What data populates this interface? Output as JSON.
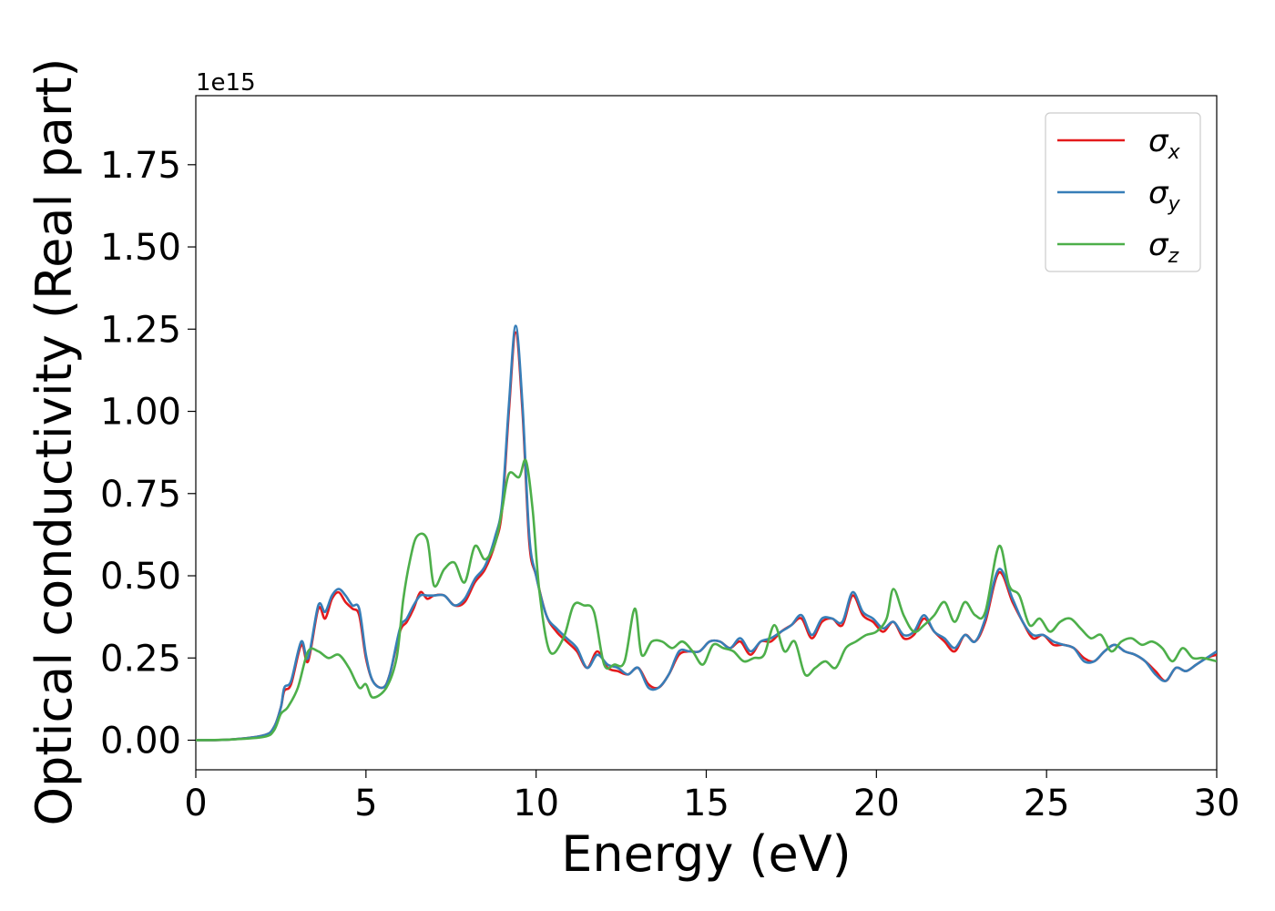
{
  "chart_data": {
    "type": "line",
    "title": "",
    "xlabel": "Energy (eV)",
    "ylabel": "Optical conductivity (Real part)",
    "y_offset_label": "1e15",
    "xlim": [
      0,
      30
    ],
    "ylim": [
      -0.09,
      1.96
    ],
    "x_ticks": [
      0,
      5,
      10,
      15,
      20,
      25,
      30
    ],
    "x_tick_labels": [
      "0",
      "5",
      "10",
      "15",
      "20",
      "25",
      "30"
    ],
    "y_ticks": [
      0.0,
      0.25,
      0.5,
      0.75,
      1.0,
      1.25,
      1.5,
      1.75
    ],
    "y_tick_labels": [
      "0.00",
      "0.25",
      "0.50",
      "0.75",
      "1.00",
      "1.25",
      "1.50",
      "1.75"
    ],
    "grid": false,
    "legend_position": "top-right",
    "series": [
      {
        "name": "σ",
        "subscript": "x",
        "color": "#e41a1c",
        "x": [
          0,
          1,
          2,
          2.3,
          2.5,
          2.6,
          2.8,
          3.1,
          3.3,
          3.6,
          3.8,
          4.0,
          4.2,
          4.4,
          4.6,
          4.8,
          5.0,
          5.2,
          5.5,
          5.7,
          6.0,
          6.2,
          6.4,
          6.6,
          6.8,
          7.0,
          7.3,
          7.6,
          7.9,
          8.2,
          8.5,
          8.8,
          9.0,
          9.2,
          9.4,
          9.6,
          9.8,
          10.0,
          10.3,
          10.6,
          10.9,
          11.2,
          11.5,
          11.8,
          12.1,
          12.4,
          12.7,
          13.0,
          13.3,
          13.6,
          13.9,
          14.2,
          14.5,
          14.8,
          15.1,
          15.4,
          15.7,
          16.0,
          16.3,
          16.6,
          16.9,
          17.2,
          17.5,
          17.8,
          18.1,
          18.4,
          18.7,
          19.0,
          19.3,
          19.6,
          19.9,
          20.2,
          20.5,
          20.8,
          21.1,
          21.4,
          21.7,
          22.0,
          22.3,
          22.6,
          22.9,
          23.2,
          23.6,
          24.0,
          24.3,
          24.6,
          24.9,
          25.2,
          25.5,
          25.8,
          26.1,
          26.4,
          26.7,
          27.0,
          27.3,
          27.6,
          27.9,
          28.2,
          28.5,
          28.8,
          29.1,
          29.4,
          29.7,
          30.0
        ],
        "y": [
          0,
          0.002,
          0.015,
          0.04,
          0.1,
          0.15,
          0.17,
          0.29,
          0.24,
          0.4,
          0.37,
          0.43,
          0.45,
          0.42,
          0.4,
          0.38,
          0.25,
          0.18,
          0.16,
          0.2,
          0.33,
          0.36,
          0.4,
          0.45,
          0.43,
          0.44,
          0.44,
          0.41,
          0.42,
          0.48,
          0.52,
          0.6,
          0.7,
          1.0,
          1.24,
          1.0,
          0.6,
          0.5,
          0.38,
          0.33,
          0.3,
          0.27,
          0.22,
          0.27,
          0.22,
          0.21,
          0.2,
          0.22,
          0.17,
          0.16,
          0.2,
          0.26,
          0.27,
          0.27,
          0.3,
          0.3,
          0.28,
          0.3,
          0.26,
          0.3,
          0.3,
          0.33,
          0.35,
          0.37,
          0.31,
          0.36,
          0.37,
          0.35,
          0.44,
          0.38,
          0.36,
          0.33,
          0.36,
          0.31,
          0.32,
          0.37,
          0.33,
          0.3,
          0.27,
          0.32,
          0.3,
          0.36,
          0.51,
          0.42,
          0.36,
          0.31,
          0.32,
          0.29,
          0.29,
          0.28,
          0.25,
          0.24,
          0.27,
          0.29,
          0.27,
          0.26,
          0.24,
          0.21,
          0.18,
          0.22,
          0.21,
          0.23,
          0.25,
          0.26
        ]
      },
      {
        "name": "σ",
        "subscript": "y",
        "color": "#377eb8",
        "x": [
          0,
          1,
          2,
          2.3,
          2.5,
          2.6,
          2.8,
          3.1,
          3.3,
          3.6,
          3.8,
          4.0,
          4.2,
          4.4,
          4.6,
          4.8,
          5.0,
          5.2,
          5.5,
          5.7,
          6.0,
          6.2,
          6.4,
          6.6,
          6.8,
          7.0,
          7.3,
          7.6,
          7.9,
          8.2,
          8.5,
          8.8,
          9.0,
          9.2,
          9.4,
          9.6,
          9.8,
          10.0,
          10.3,
          10.6,
          10.9,
          11.2,
          11.5,
          11.8,
          12.1,
          12.4,
          12.7,
          13.0,
          13.3,
          13.6,
          13.9,
          14.2,
          14.5,
          14.8,
          15.1,
          15.4,
          15.7,
          16.0,
          16.3,
          16.6,
          16.9,
          17.2,
          17.5,
          17.8,
          18.1,
          18.4,
          18.7,
          19.0,
          19.3,
          19.6,
          19.9,
          20.2,
          20.5,
          20.8,
          21.1,
          21.4,
          21.7,
          22.0,
          22.3,
          22.6,
          22.9,
          23.2,
          23.6,
          24.0,
          24.3,
          24.6,
          24.9,
          25.2,
          25.5,
          25.8,
          26.1,
          26.4,
          26.7,
          27.0,
          27.3,
          27.6,
          27.9,
          28.2,
          28.5,
          28.8,
          29.1,
          29.4,
          29.7,
          30.0
        ],
        "y": [
          0,
          0.002,
          0.015,
          0.04,
          0.1,
          0.16,
          0.18,
          0.3,
          0.25,
          0.41,
          0.39,
          0.44,
          0.46,
          0.44,
          0.41,
          0.4,
          0.26,
          0.18,
          0.16,
          0.2,
          0.34,
          0.37,
          0.41,
          0.44,
          0.44,
          0.44,
          0.44,
          0.41,
          0.43,
          0.49,
          0.53,
          0.62,
          0.72,
          1.02,
          1.26,
          1.02,
          0.62,
          0.5,
          0.38,
          0.34,
          0.31,
          0.28,
          0.22,
          0.26,
          0.23,
          0.22,
          0.2,
          0.22,
          0.16,
          0.16,
          0.2,
          0.27,
          0.27,
          0.27,
          0.3,
          0.3,
          0.28,
          0.31,
          0.27,
          0.3,
          0.31,
          0.33,
          0.35,
          0.38,
          0.32,
          0.37,
          0.37,
          0.36,
          0.45,
          0.39,
          0.37,
          0.34,
          0.36,
          0.32,
          0.33,
          0.38,
          0.33,
          0.31,
          0.28,
          0.32,
          0.3,
          0.37,
          0.52,
          0.43,
          0.36,
          0.32,
          0.32,
          0.3,
          0.29,
          0.28,
          0.24,
          0.24,
          0.27,
          0.29,
          0.27,
          0.26,
          0.24,
          0.2,
          0.18,
          0.22,
          0.21,
          0.23,
          0.25,
          0.27
        ]
      },
      {
        "name": "σ",
        "subscript": "z",
        "color": "#4daf4a",
        "x": [
          0,
          1,
          2,
          2.3,
          2.5,
          2.7,
          3.0,
          3.3,
          3.6,
          3.9,
          4.2,
          4.5,
          4.8,
          5.0,
          5.2,
          5.6,
          5.9,
          6.1,
          6.3,
          6.5,
          6.8,
          7.0,
          7.3,
          7.6,
          7.9,
          8.2,
          8.5,
          8.8,
          9.0,
          9.2,
          9.5,
          9.7,
          9.9,
          10.1,
          10.4,
          10.8,
          11.1,
          11.4,
          11.7,
          12.0,
          12.3,
          12.6,
          12.9,
          13.1,
          13.4,
          13.7,
          14.0,
          14.3,
          14.6,
          14.9,
          15.2,
          15.5,
          15.8,
          16.1,
          16.4,
          16.7,
          17.0,
          17.3,
          17.6,
          17.9,
          18.2,
          18.5,
          18.8,
          19.1,
          19.4,
          19.7,
          20.0,
          20.3,
          20.5,
          20.8,
          21.1,
          21.4,
          21.7,
          22.0,
          22.3,
          22.6,
          22.9,
          23.2,
          23.6,
          23.9,
          24.2,
          24.5,
          24.8,
          25.1,
          25.4,
          25.7,
          26.0,
          26.3,
          26.6,
          26.9,
          27.2,
          27.5,
          27.8,
          28.1,
          28.4,
          28.7,
          29.0,
          29.3,
          29.6,
          30.0
        ],
        "y": [
          0,
          0.002,
          0.01,
          0.03,
          0.08,
          0.1,
          0.16,
          0.27,
          0.27,
          0.25,
          0.26,
          0.22,
          0.16,
          0.17,
          0.13,
          0.16,
          0.25,
          0.43,
          0.55,
          0.62,
          0.61,
          0.47,
          0.52,
          0.54,
          0.48,
          0.59,
          0.55,
          0.6,
          0.7,
          0.81,
          0.8,
          0.85,
          0.7,
          0.45,
          0.27,
          0.31,
          0.41,
          0.41,
          0.39,
          0.23,
          0.23,
          0.24,
          0.4,
          0.26,
          0.3,
          0.3,
          0.28,
          0.3,
          0.27,
          0.23,
          0.29,
          0.28,
          0.27,
          0.24,
          0.25,
          0.26,
          0.35,
          0.27,
          0.3,
          0.2,
          0.22,
          0.24,
          0.22,
          0.28,
          0.3,
          0.32,
          0.33,
          0.37,
          0.46,
          0.38,
          0.33,
          0.35,
          0.38,
          0.42,
          0.36,
          0.42,
          0.38,
          0.39,
          0.59,
          0.47,
          0.44,
          0.35,
          0.37,
          0.33,
          0.36,
          0.37,
          0.34,
          0.31,
          0.32,
          0.27,
          0.3,
          0.31,
          0.29,
          0.3,
          0.28,
          0.24,
          0.28,
          0.25,
          0.25,
          0.24
        ]
      }
    ]
  }
}
